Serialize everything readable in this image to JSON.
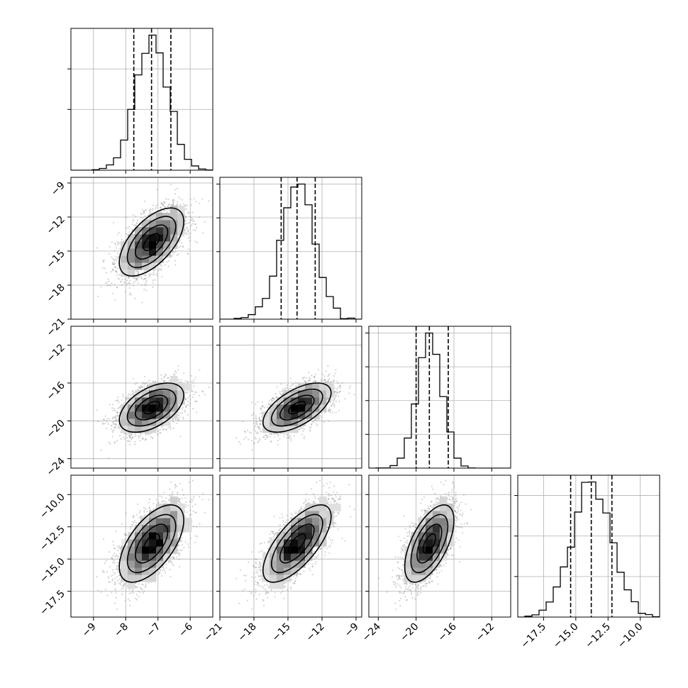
{
  "chart_data": {
    "type": "corner",
    "grid": true,
    "parameters": [
      {
        "range": [
          -9.7,
          -5.3
        ],
        "ticks": [
          -9,
          -8,
          -7,
          -6
        ],
        "tick_labels": [
          "−9",
          "−8",
          "−7",
          "−6"
        ],
        "quantiles": [
          -7.75,
          -7.2,
          -6.6
        ],
        "median": -7.2,
        "sigma": 0.5
      },
      {
        "range": [
          -21.0,
          -8.5
        ],
        "ticks": [
          -21,
          -18,
          -15,
          -12,
          -9
        ],
        "tick_labels": [
          "−21",
          "−18",
          "−15",
          "−12",
          "−9"
        ],
        "quantiles": [
          -15.6,
          -14.2,
          -12.6
        ],
        "median": -14.2,
        "sigma": 1.5
      },
      {
        "range": [
          -25.0,
          -10.0
        ],
        "ticks": [
          -24,
          -20,
          -16,
          -12
        ],
        "tick_labels": [
          "−24",
          "−20",
          "−16",
          "−12"
        ],
        "quantiles": [
          -20.0,
          -18.6,
          -16.6
        ],
        "median": -18.6,
        "sigma": 1.3
      },
      {
        "range": [
          -19.5,
          -8.5
        ],
        "ticks": [
          -17.5,
          -15.0,
          -12.5,
          -10.0
        ],
        "tick_labels": [
          "−17.5",
          "−15.0",
          "−12.5",
          "−10.0"
        ],
        "quantiles": [
          -15.4,
          -13.8,
          -12.2
        ],
        "median": -13.8,
        "sigma": 1.5
      }
    ],
    "hist_y_ticks": [
      [
        0.45,
        0.75,
        1.05
      ],
      [
        0.5,
        0.75,
        1.0
      ],
      [
        0.25,
        0.5,
        0.75,
        1.0
      ],
      [
        0.3,
        0.6,
        0.9
      ]
    ],
    "correlations": [
      [
        1.0,
        0.6,
        0.5,
        0.6
      ],
      [
        0.6,
        1.0,
        0.6,
        0.7
      ],
      [
        0.5,
        0.6,
        1.0,
        0.6
      ],
      [
        0.6,
        0.7,
        0.6,
        1.0
      ]
    ],
    "bins": 20
  }
}
